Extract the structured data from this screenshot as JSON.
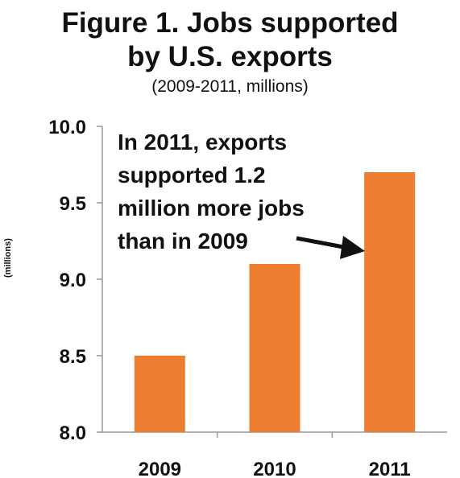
{
  "chart_data": {
    "type": "bar",
    "title": "Figure 1. Jobs supported",
    "title_line2": "by U.S. exports",
    "subtitle": "(2009-2011, millions)",
    "ylabel": "(millions)",
    "xlabel": "",
    "categories": [
      "2009",
      "2010",
      "2011"
    ],
    "values": [
      8.5,
      9.1,
      9.7
    ],
    "ylim": [
      8.0,
      10.0
    ],
    "yticks": [
      "8.0",
      "8.5",
      "9.0",
      "9.5",
      "10.0"
    ],
    "bar_color": "#ED7D31",
    "grid": false,
    "annotation": "In 2011, exports\nsupported 1.2\nmillion more jobs\nthan in 2009"
  }
}
